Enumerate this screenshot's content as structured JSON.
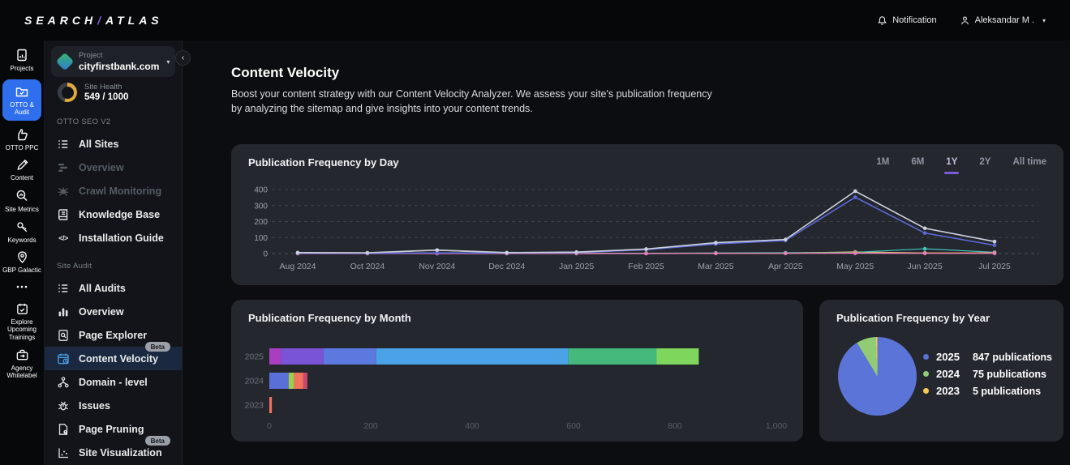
{
  "topbar": {
    "brand_part1": "SEARCH",
    "brand_slash": "/",
    "brand_part2": "ATLAS",
    "notification_label": "Notification",
    "user_name": "Aleksandar M .",
    "caret": "▾"
  },
  "rail": {
    "items": [
      {
        "label": "Projects",
        "active": false
      },
      {
        "label": "OTTO & Audit",
        "active": true
      },
      {
        "label": "OTTO PPC",
        "active": false
      },
      {
        "label": "Content",
        "active": false
      },
      {
        "label": "Site Metrics",
        "active": false
      },
      {
        "label": "Keywords",
        "active": false
      },
      {
        "label": "GBP Galactic",
        "active": false
      },
      {
        "label": "",
        "active": false
      },
      {
        "label": "Explore Upcoming Trainings",
        "active": false
      },
      {
        "label": "Agency Whitelabel",
        "active": false
      }
    ]
  },
  "sidebar": {
    "collapse_icon": "‹",
    "project": {
      "label": "Project",
      "value": "cityfirstbank.com",
      "caret": "▾"
    },
    "site_health": {
      "label": "Site Health",
      "value": "549 / 1000",
      "score": 549,
      "max": 1000
    },
    "sections": [
      {
        "title": "OTTO SEO V2",
        "items": [
          {
            "label": "All Sites"
          },
          {
            "label": "Overview"
          },
          {
            "label": "Crawl Monitoring"
          },
          {
            "label": "Knowledge Base"
          },
          {
            "label": "Installation Guide"
          }
        ]
      },
      {
        "title": "Site Audit",
        "items": [
          {
            "label": "All Audits"
          },
          {
            "label": "Overview"
          },
          {
            "label": "Page Explorer"
          },
          {
            "label": "Content Velocity",
            "badge": "Beta"
          },
          {
            "label": "Domain - level"
          },
          {
            "label": "Issues"
          },
          {
            "label": "Page Pruning"
          },
          {
            "label": "Site Visualization",
            "badge": "Beta"
          }
        ]
      }
    ]
  },
  "main": {
    "page_title": "Content Velocity",
    "page_description": "Boost your content strategy with our Content Velocity Analyzer. We assess your site's publication frequency by analyzing the sitemap and give insights into your content trends."
  },
  "chart_data": [
    {
      "id": "publication-frequency-by-day",
      "type": "line",
      "title": "Publication Frequency by Day",
      "range_tabs": [
        "1M",
        "6M",
        "1Y",
        "2Y",
        "All time"
      ],
      "active_tab": "1Y",
      "x": [
        "Aug 2024",
        "Oct 2024",
        "Nov 2024",
        "Dec 2024",
        "Jan 2025",
        "Feb 2025",
        "Mar 2025",
        "Apr 2025",
        "May 2025",
        "Jun 2025",
        "Jul 2025"
      ],
      "yticks": [
        0,
        100,
        200,
        300,
        400
      ],
      "ylim": [
        0,
        400
      ],
      "grid": "horizontal-dashed",
      "series": [
        {
          "name": "series-olive",
          "color": "#c9d48e",
          "values": [
            3,
            4,
            20,
            4,
            2,
            2,
            2,
            3,
            10,
            4,
            3
          ]
        },
        {
          "name": "series-teal",
          "color": "#43c8c0",
          "values": [
            1,
            1,
            2,
            1,
            2,
            2,
            4,
            5,
            8,
            30,
            8
          ]
        },
        {
          "name": "series-orange",
          "color": "#f09a5a",
          "values": [
            1,
            1,
            1,
            1,
            1,
            1,
            2,
            2,
            6,
            3,
            5
          ]
        },
        {
          "name": "series-pink",
          "color": "#e57fc2",
          "values": [
            0,
            0,
            0,
            0,
            0,
            0,
            1,
            1,
            2,
            1,
            1
          ]
        },
        {
          "name": "series-indigo",
          "color": "#5d68d8",
          "values": [
            3,
            2,
            4,
            4,
            6,
            24,
            60,
            82,
            352,
            128,
            52
          ]
        },
        {
          "name": "series-total",
          "color": "#ccd2dd",
          "values": [
            6,
            5,
            22,
            6,
            9,
            28,
            68,
            88,
            390,
            158,
            75
          ]
        }
      ]
    },
    {
      "id": "publication-frequency-by-month",
      "type": "stacked-bar-horizontal",
      "title": "Publication Frequency by Month",
      "categories": [
        "2025",
        "2024",
        "2023"
      ],
      "xlim": [
        0,
        1000
      ],
      "xticks": [
        0,
        200,
        400,
        600,
        800,
        1000
      ],
      "xtick_labels": [
        "0",
        "200",
        "400",
        "600",
        "800",
        "1,000"
      ],
      "bars": [
        {
          "category": "2025",
          "total": 847,
          "segments": [
            {
              "value": 23,
              "color": "#a93fc0"
            },
            {
              "value": 84,
              "color": "#7a54d6"
            },
            {
              "value": 104,
              "color": "#5b79de"
            },
            {
              "value": 379,
              "color": "#49a3e6"
            },
            {
              "value": 174,
              "color": "#45b97c"
            },
            {
              "value": 83,
              "color": "#7ed65c"
            }
          ]
        },
        {
          "category": "2024",
          "total": 75,
          "segments": [
            {
              "value": 38,
              "color": "#5b6fd8"
            },
            {
              "value": 11,
              "color": "#9ccb52"
            },
            {
              "value": 18,
              "color": "#f4715d"
            },
            {
              "value": 8,
              "color": "#c9486e"
            }
          ]
        },
        {
          "category": "2023",
          "total": 5,
          "segments": [
            {
              "value": 5,
              "color": "#f4715d"
            }
          ]
        }
      ]
    },
    {
      "id": "publication-frequency-by-year",
      "type": "pie",
      "title": "Publication Frequency by Year",
      "slices": [
        {
          "label": "2025",
          "value": 847,
          "color": "#5b74d8",
          "legend": "847 publications"
        },
        {
          "label": "2024",
          "value": 75,
          "color": "#91cc75",
          "legend": "75 publications"
        },
        {
          "label": "2023",
          "value": 5,
          "color": "#fac858",
          "legend": "5 publications"
        }
      ]
    }
  ]
}
